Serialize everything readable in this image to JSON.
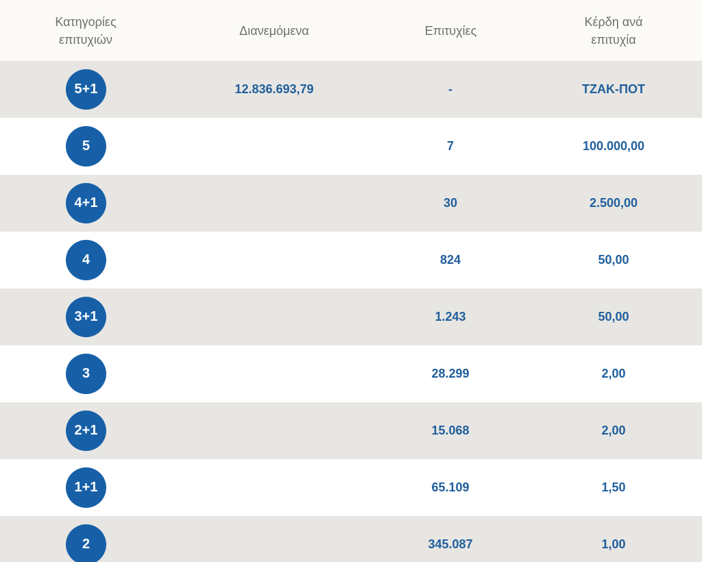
{
  "header": {
    "category_label": "Κατηγορίες\nεπιτυχιών",
    "distributed_label": "Διανεμόμενα",
    "wins_label": "Επιτυχίες",
    "prize_label": "Κέρδη ανά\nεπιτυχία"
  },
  "colors": {
    "badge_bg": "#1760a8",
    "value_text": "#1f5e9c",
    "shaded_row": "#e8e6e3",
    "header_bg": "#fbfaf7"
  },
  "rows": [
    {
      "category": "5+1",
      "distributed": "12.836.693,79",
      "wins": "-",
      "prize": "ΤΖΑΚ-ΠΟΤ"
    },
    {
      "category": "5",
      "distributed": "",
      "wins": "7",
      "prize": "100.000,00"
    },
    {
      "category": "4+1",
      "distributed": "",
      "wins": "30",
      "prize": "2.500,00"
    },
    {
      "category": "4",
      "distributed": "",
      "wins": "824",
      "prize": "50,00"
    },
    {
      "category": "3+1",
      "distributed": "",
      "wins": "1.243",
      "prize": "50,00"
    },
    {
      "category": "3",
      "distributed": "",
      "wins": "28.299",
      "prize": "2,00"
    },
    {
      "category": "2+1",
      "distributed": "",
      "wins": "15.068",
      "prize": "2,00"
    },
    {
      "category": "1+1",
      "distributed": "",
      "wins": "65.109",
      "prize": "1,50"
    },
    {
      "category": "2",
      "distributed": "",
      "wins": "345.087",
      "prize": "1,00"
    }
  ]
}
